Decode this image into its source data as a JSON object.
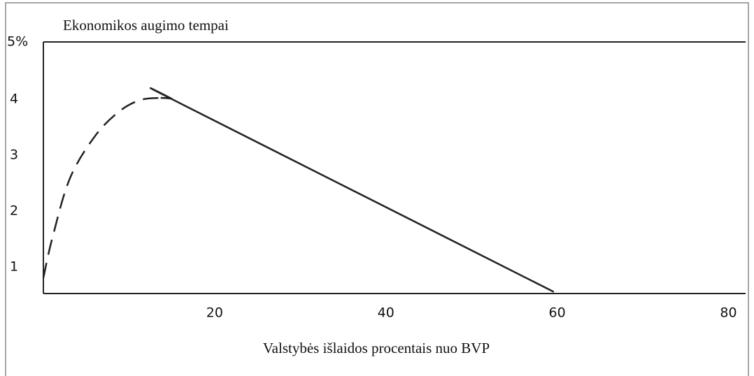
{
  "chart_data": {
    "type": "line",
    "title": "Ekonomikos augimo tempai",
    "x_label": "Valstybės išlaidos procentais nuo BVP",
    "xlim": [
      0,
      82
    ],
    "xticks": [
      20,
      40,
      60,
      80
    ],
    "ylim": [
      0.5,
      5
    ],
    "yticks": [
      1,
      2,
      3,
      4,
      {
        "value": 5,
        "label": "5%"
      }
    ],
    "series": [
      {
        "color": "#222222",
        "style": "dashed",
        "x": [
          0,
          1.06,
          3.1,
          6,
          8.8,
          11.3,
          13.7
        ],
        "values": [
          0.78,
          1.5,
          2.56,
          3.31,
          3.75,
          3.96,
          4
        ]
      },
      {
        "color": "#222222",
        "style": "solid",
        "x": [
          13.7,
          15,
          16,
          59.6
        ],
        "values": [
          4,
          3.98,
          3.9,
          0.53
        ]
      }
    ]
  }
}
